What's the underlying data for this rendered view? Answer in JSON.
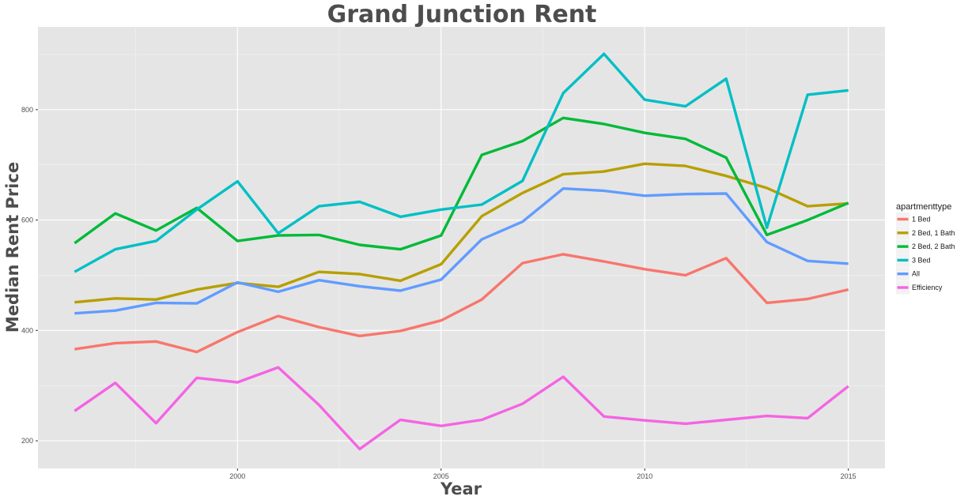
{
  "chart_data": {
    "type": "line",
    "title": "Grand Junction Rent",
    "xlabel": "Year",
    "ylabel": "Median Rent Price",
    "xlim": [
      1995.1,
      2015.9
    ],
    "ylim": [
      150,
      950
    ],
    "x_ticks": [
      2000,
      2005,
      2010,
      2015
    ],
    "x_tick_labels": [
      "2000",
      "2005",
      "2010",
      "2015"
    ],
    "y_ticks": [
      200,
      400,
      600,
      800
    ],
    "y_tick_labels": [
      "200",
      "400",
      "600",
      "800"
    ],
    "grid": true,
    "background": "#e5e5e5",
    "legend": {
      "title": "apartmenttype",
      "position": "right"
    },
    "x": [
      1996,
      1997,
      1998,
      1999,
      2000,
      2001,
      2002,
      2003,
      2004,
      2005,
      2006,
      2007,
      2008,
      2009,
      2010,
      2011,
      2012,
      2013,
      2014,
      2015
    ],
    "series": [
      {
        "name": "1 Bed",
        "color": "#f8766d",
        "values": [
          366,
          377,
          380,
          361,
          397,
          426,
          406,
          390,
          399,
          418,
          456,
          522,
          538,
          525,
          511,
          500,
          531,
          450,
          457,
          474
        ]
      },
      {
        "name": "2 Bed, 1 Bath",
        "color": "#b79f00",
        "values": [
          451,
          458,
          456,
          474,
          486,
          479,
          506,
          502,
          490,
          520,
          607,
          649,
          683,
          688,
          702,
          698,
          680,
          658,
          625,
          630
        ]
      },
      {
        "name": "2 Bed, 2 Bath",
        "color": "#00ba38",
        "values": [
          558,
          612,
          581,
          622,
          562,
          572,
          573,
          555,
          547,
          572,
          718,
          743,
          785,
          774,
          758,
          747,
          713,
          573,
          600,
          631
        ]
      },
      {
        "name": "3 Bed",
        "color": "#00bfc4",
        "values": [
          506,
          547,
          562,
          619,
          670,
          576,
          625,
          633,
          606,
          619,
          628,
          671,
          830,
          901,
          818,
          806,
          856,
          586,
          827,
          835
        ]
      },
      {
        "name": "All",
        "color": "#619cff",
        "values": [
          431,
          436,
          450,
          449,
          487,
          470,
          491,
          480,
          472,
          492,
          565,
          597,
          657,
          653,
          644,
          647,
          648,
          560,
          526,
          521
        ]
      },
      {
        "name": "Efficiency",
        "color": "#f564e3",
        "values": [
          254,
          305,
          232,
          314,
          306,
          333,
          265,
          185,
          238,
          227,
          238,
          267,
          316,
          244,
          237,
          231,
          238,
          245,
          241,
          299
        ]
      }
    ]
  }
}
